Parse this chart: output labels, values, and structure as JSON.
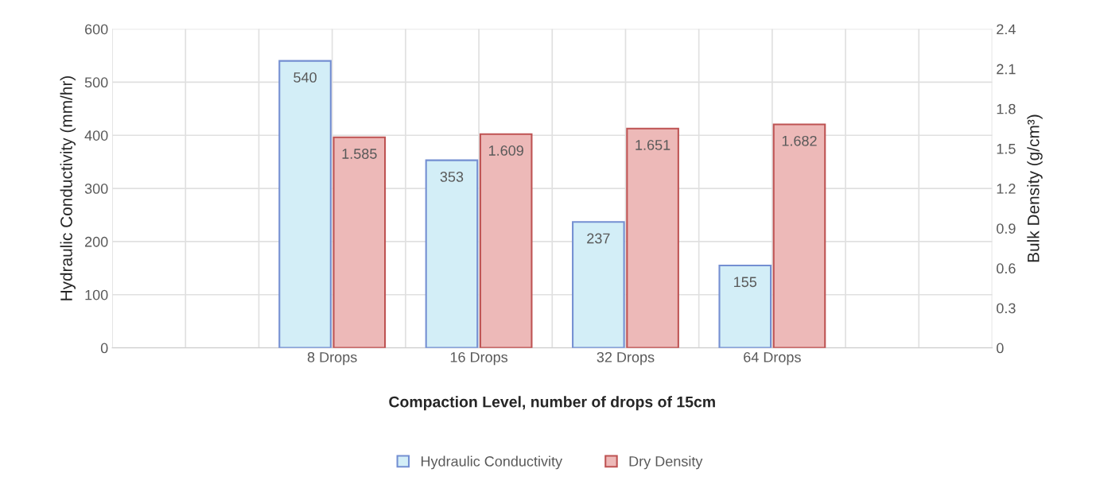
{
  "chart_data": {
    "type": "bar",
    "xlabel": "Compaction Level, number of drops of 15cm",
    "ylabel": "Hydraulic Conductivity (mm/hr)",
    "y2label": "Bulk Density (g/cm³)",
    "categories": [
      null,
      "8 Drops",
      "16 Drops",
      "32 Drops",
      "64 Drops",
      null
    ],
    "series": [
      {
        "name": "Hydraulic Conductivity",
        "color": "#d3eef7",
        "values": [
          null,
          540,
          353,
          237,
          155,
          null
        ]
      },
      {
        "name": "Dry Density",
        "color": "#edb9b8",
        "axis": "y2",
        "values": [
          null,
          1.585,
          1.609,
          1.651,
          1.682,
          null
        ]
      }
    ],
    "ylim": [
      0,
      600
    ],
    "yticks": [
      0,
      100,
      200,
      300,
      400,
      500,
      600
    ],
    "y2lim": [
      0,
      2.4
    ],
    "y2ticks": [
      0,
      0.3,
      0.6,
      0.9,
      1.2,
      1.5,
      1.8,
      2.1,
      2.4
    ],
    "data_labels": true,
    "grid": true,
    "legend": "bottom"
  }
}
